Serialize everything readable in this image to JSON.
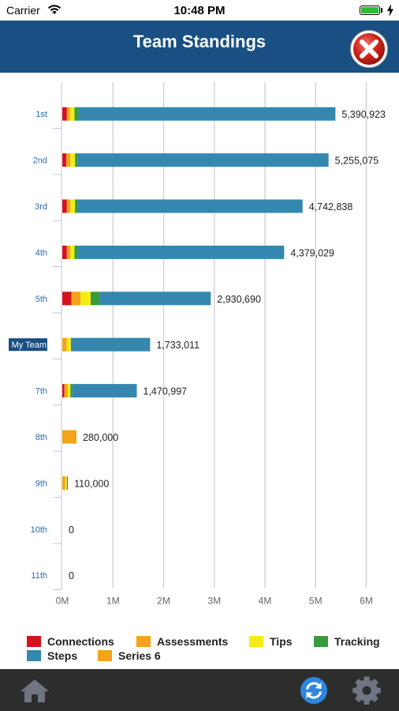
{
  "status_bar": {
    "carrier": "Carrier",
    "time": "10:48 PM"
  },
  "header": {
    "title": "Team Standings"
  },
  "chart_data": {
    "type": "bar",
    "orientation": "horizontal",
    "stacked": true,
    "categories": [
      "1st",
      "2nd",
      "3rd",
      "4th",
      "5th",
      "My Team",
      "7th",
      "8th",
      "9th",
      "10th",
      "11th"
    ],
    "highlighted_category": "My Team",
    "totals_labels": [
      "5,390,923",
      "5,255,075",
      "4,742,838",
      "4,379,029",
      "2,930,690",
      "1,733,011",
      "1,470,997",
      "280,000",
      "110,000",
      "0",
      "0"
    ],
    "series": [
      {
        "name": "Connections",
        "color": "#d4121e",
        "values": [
          90000,
          80000,
          90000,
          90000,
          180000,
          0,
          40000,
          0,
          0,
          0,
          0
        ]
      },
      {
        "name": "Assessments",
        "color": "#f5a31a",
        "values": [
          60000,
          80000,
          70000,
          70000,
          180000,
          90000,
          70000,
          280000,
          60000,
          0,
          0
        ]
      },
      {
        "name": "Tips",
        "color": "#f7ec12",
        "values": [
          90000,
          90000,
          90000,
          80000,
          200000,
          80000,
          50000,
          0,
          30000,
          0,
          0
        ]
      },
      {
        "name": "Tracking",
        "color": "#3a9a3e",
        "values": [
          80000,
          60000,
          60000,
          70000,
          180000,
          0,
          40000,
          0,
          20000,
          0,
          0
        ]
      },
      {
        "name": "Steps",
        "color": "#3488b0",
        "values": [
          5070923,
          4945075,
          4432838,
          4069029,
          2190690,
          1563011,
          1270997,
          0,
          0,
          0,
          0
        ]
      },
      {
        "name": "Series 6",
        "color": "#f5a31a",
        "values": [
          0,
          0,
          0,
          0,
          0,
          0,
          0,
          0,
          0,
          0,
          0
        ]
      }
    ],
    "x_ticks": [
      "0M",
      "1M",
      "2M",
      "3M",
      "4M",
      "5M",
      "6M"
    ],
    "xlim": [
      0,
      6000000
    ],
    "grid": true,
    "legend_position": "bottom"
  },
  "colors": {
    "header": "#194f83",
    "tab_bar": "#2d2d2d",
    "category_label": "#2a6bb0",
    "gridline": "#d4d4d4"
  },
  "tab_bar": {
    "icons": [
      "home-icon",
      "refresh-icon",
      "gear-icon"
    ]
  }
}
